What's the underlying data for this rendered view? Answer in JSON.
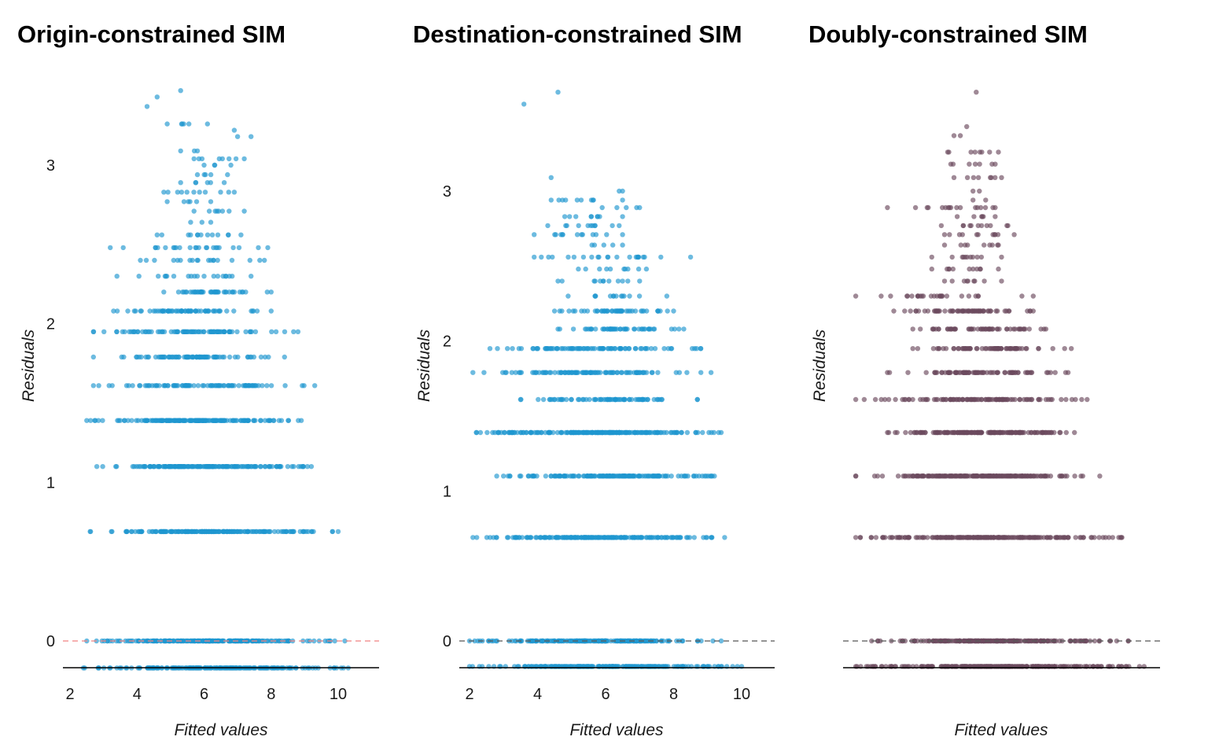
{
  "chart_data": [
    {
      "type": "scatter",
      "title": "Origin-constrained SIM",
      "xlabel": "Fitted values",
      "ylabel": "Residuals",
      "xlim": [
        1.8,
        11.2
      ],
      "ylim": [
        -0.18,
        3.55
      ],
      "xticks": [
        2,
        4,
        6,
        8,
        10
      ],
      "yticks": [
        0,
        1,
        2,
        3
      ],
      "reference_line": {
        "y": 0,
        "color": "#f08080",
        "style": "dashed"
      },
      "point_color": "#1f96d0",
      "grid": false,
      "legend": "none",
      "levels": [
        {
          "y": -0.17,
          "x": [
            2.4,
            10.3
          ]
        },
        {
          "y": 0,
          "x": [
            2.5,
            10.2
          ]
        },
        {
          "y": 0.69,
          "x": [
            2.6,
            10.0
          ]
        },
        {
          "y": 1.1,
          "x": [
            2.8,
            9.2
          ]
        },
        {
          "y": 1.39,
          "x": [
            2.5,
            8.9
          ]
        },
        {
          "y": 1.61,
          "x": [
            2.7,
            9.3
          ]
        },
        {
          "y": 1.79,
          "x": [
            2.7,
            8.4
          ]
        },
        {
          "y": 1.95,
          "x": [
            2.7,
            8.8
          ]
        },
        {
          "y": 2.08,
          "x": [
            3.3,
            8.0
          ]
        },
        {
          "y": 2.2,
          "x": [
            4.8,
            8.0
          ]
        },
        {
          "y": 2.3,
          "x": [
            3.4,
            7.4
          ]
        },
        {
          "y": 2.4,
          "x": [
            4.1,
            7.8
          ]
        },
        {
          "y": 2.48,
          "x": [
            3.2,
            7.9
          ]
        },
        {
          "y": 2.56,
          "x": [
            4.6,
            7.1
          ]
        },
        {
          "y": 2.64,
          "x": [
            5.6,
            6.2
          ]
        },
        {
          "y": 2.71,
          "x": [
            5.7,
            7.2
          ]
        },
        {
          "y": 2.77,
          "x": [
            4.9,
            6.2
          ]
        },
        {
          "y": 2.83,
          "x": [
            4.8,
            6.9
          ]
        },
        {
          "y": 2.89,
          "x": [
            5.3,
            6.6
          ]
        },
        {
          "y": 2.94,
          "x": [
            5.8,
            6.7
          ]
        },
        {
          "y": 3.0,
          "x": [
            6.0,
            6.8
          ]
        },
        {
          "y": 3.04,
          "x": [
            5.7,
            7.2
          ]
        },
        {
          "y": 3.09,
          "x": [
            5.3,
            5.8
          ]
        },
        {
          "y": 3.18,
          "x": [
            7.0,
            7.4
          ]
        },
        {
          "y": 3.22,
          "x": [
            6.9,
            6.9
          ]
        },
        {
          "y": 3.26,
          "x": [
            4.9,
            6.1
          ]
        },
        {
          "y": 3.37,
          "x": [
            4.3,
            4.3
          ]
        },
        {
          "y": 3.43,
          "x": [
            4.6,
            4.6
          ]
        },
        {
          "y": 3.47,
          "x": [
            5.3,
            5.3
          ]
        }
      ]
    },
    {
      "type": "scatter",
      "title": "Destination-constrained SIM",
      "xlabel": "Fitted values",
      "ylabel": "Residuals",
      "xlim": [
        1.8,
        11.0
      ],
      "ylim": [
        -0.18,
        3.75
      ],
      "xticks": [
        2,
        4,
        6,
        8,
        10
      ],
      "yticks": [
        0,
        1,
        2,
        3
      ],
      "reference_line": {
        "y": 0,
        "color": "#555555",
        "style": "dashed"
      },
      "point_color": "#1f96d0",
      "grid": false,
      "legend": "none",
      "levels": [
        {
          "y": -0.17,
          "x": [
            2.0,
            10.0
          ]
        },
        {
          "y": 0,
          "x": [
            2.0,
            9.4
          ]
        },
        {
          "y": 0.69,
          "x": [
            2.1,
            9.5
          ]
        },
        {
          "y": 1.1,
          "x": [
            2.8,
            9.2
          ]
        },
        {
          "y": 1.39,
          "x": [
            2.2,
            9.4
          ]
        },
        {
          "y": 1.61,
          "x": [
            3.5,
            8.7
          ]
        },
        {
          "y": 1.79,
          "x": [
            2.1,
            9.1
          ]
        },
        {
          "y": 1.95,
          "x": [
            2.6,
            8.8
          ]
        },
        {
          "y": 2.08,
          "x": [
            4.6,
            8.3
          ]
        },
        {
          "y": 2.2,
          "x": [
            4.5,
            8.0
          ]
        },
        {
          "y": 2.3,
          "x": [
            4.9,
            7.8
          ]
        },
        {
          "y": 2.4,
          "x": [
            4.6,
            7.0
          ]
        },
        {
          "y": 2.48,
          "x": [
            5.2,
            7.2
          ]
        },
        {
          "y": 2.56,
          "x": [
            3.9,
            8.5
          ]
        },
        {
          "y": 2.64,
          "x": [
            5.6,
            6.5
          ]
        },
        {
          "y": 2.71,
          "x": [
            3.9,
            6.5
          ]
        },
        {
          "y": 2.77,
          "x": [
            4.3,
            6.4
          ]
        },
        {
          "y": 2.83,
          "x": [
            4.8,
            6.5
          ]
        },
        {
          "y": 2.89,
          "x": [
            5.9,
            7.0
          ]
        },
        {
          "y": 2.94,
          "x": [
            4.4,
            6.5
          ]
        },
        {
          "y": 3.0,
          "x": [
            6.4,
            6.5
          ]
        },
        {
          "y": 3.09,
          "x": [
            4.4,
            4.4
          ]
        },
        {
          "y": 3.58,
          "x": [
            3.6,
            3.6
          ]
        },
        {
          "y": 3.66,
          "x": [
            4.6,
            4.6
          ]
        }
      ]
    },
    {
      "type": "scatter",
      "title": "Doubly-constrained SIM",
      "xlabel": "Fitted values",
      "ylabel": "Residuals",
      "xlim": [
        0,
        10
      ],
      "ylim": [
        -0.18,
        3.75
      ],
      "xticks": [],
      "yticks": [],
      "reference_line": {
        "y": 0,
        "color": "#555555",
        "style": "dashed"
      },
      "point_color": "#6b4a5e",
      "grid": false,
      "legend": "none",
      "levels": [
        {
          "y": -0.17,
          "x": [
            0.4,
            9.5
          ]
        },
        {
          "y": 0,
          "x": [
            0.9,
            9.0
          ]
        },
        {
          "y": 0.69,
          "x": [
            0.4,
            8.8
          ]
        },
        {
          "y": 1.1,
          "x": [
            0.4,
            8.1
          ]
        },
        {
          "y": 1.39,
          "x": [
            1.4,
            7.3
          ]
        },
        {
          "y": 1.61,
          "x": [
            0.4,
            7.7
          ]
        },
        {
          "y": 1.79,
          "x": [
            1.4,
            7.1
          ]
        },
        {
          "y": 1.95,
          "x": [
            2.2,
            7.2
          ]
        },
        {
          "y": 2.08,
          "x": [
            2.2,
            6.4
          ]
        },
        {
          "y": 2.2,
          "x": [
            1.6,
            6.0
          ]
        },
        {
          "y": 2.3,
          "x": [
            0.4,
            6.0
          ]
        },
        {
          "y": 2.4,
          "x": [
            3.2,
            5.0
          ]
        },
        {
          "y": 2.48,
          "x": [
            2.8,
            4.9
          ]
        },
        {
          "y": 2.56,
          "x": [
            2.8,
            5.0
          ]
        },
        {
          "y": 2.64,
          "x": [
            3.2,
            4.9
          ]
        },
        {
          "y": 2.71,
          "x": [
            3.2,
            5.4
          ]
        },
        {
          "y": 2.77,
          "x": [
            3.1,
            5.2
          ]
        },
        {
          "y": 2.83,
          "x": [
            3.6,
            4.8
          ]
        },
        {
          "y": 2.89,
          "x": [
            1.4,
            4.8
          ]
        },
        {
          "y": 2.94,
          "x": [
            4.1,
            4.5
          ]
        },
        {
          "y": 3.0,
          "x": [
            4.1,
            4.3
          ]
        },
        {
          "y": 3.09,
          "x": [
            3.5,
            5.0
          ]
        },
        {
          "y": 3.18,
          "x": [
            3.4,
            4.8
          ]
        },
        {
          "y": 3.26,
          "x": [
            3.3,
            4.9
          ]
        },
        {
          "y": 3.37,
          "x": [
            3.5,
            3.7
          ]
        },
        {
          "y": 3.43,
          "x": [
            3.9,
            3.9
          ]
        },
        {
          "y": 3.66,
          "x": [
            4.2,
            4.2
          ]
        }
      ]
    }
  ]
}
